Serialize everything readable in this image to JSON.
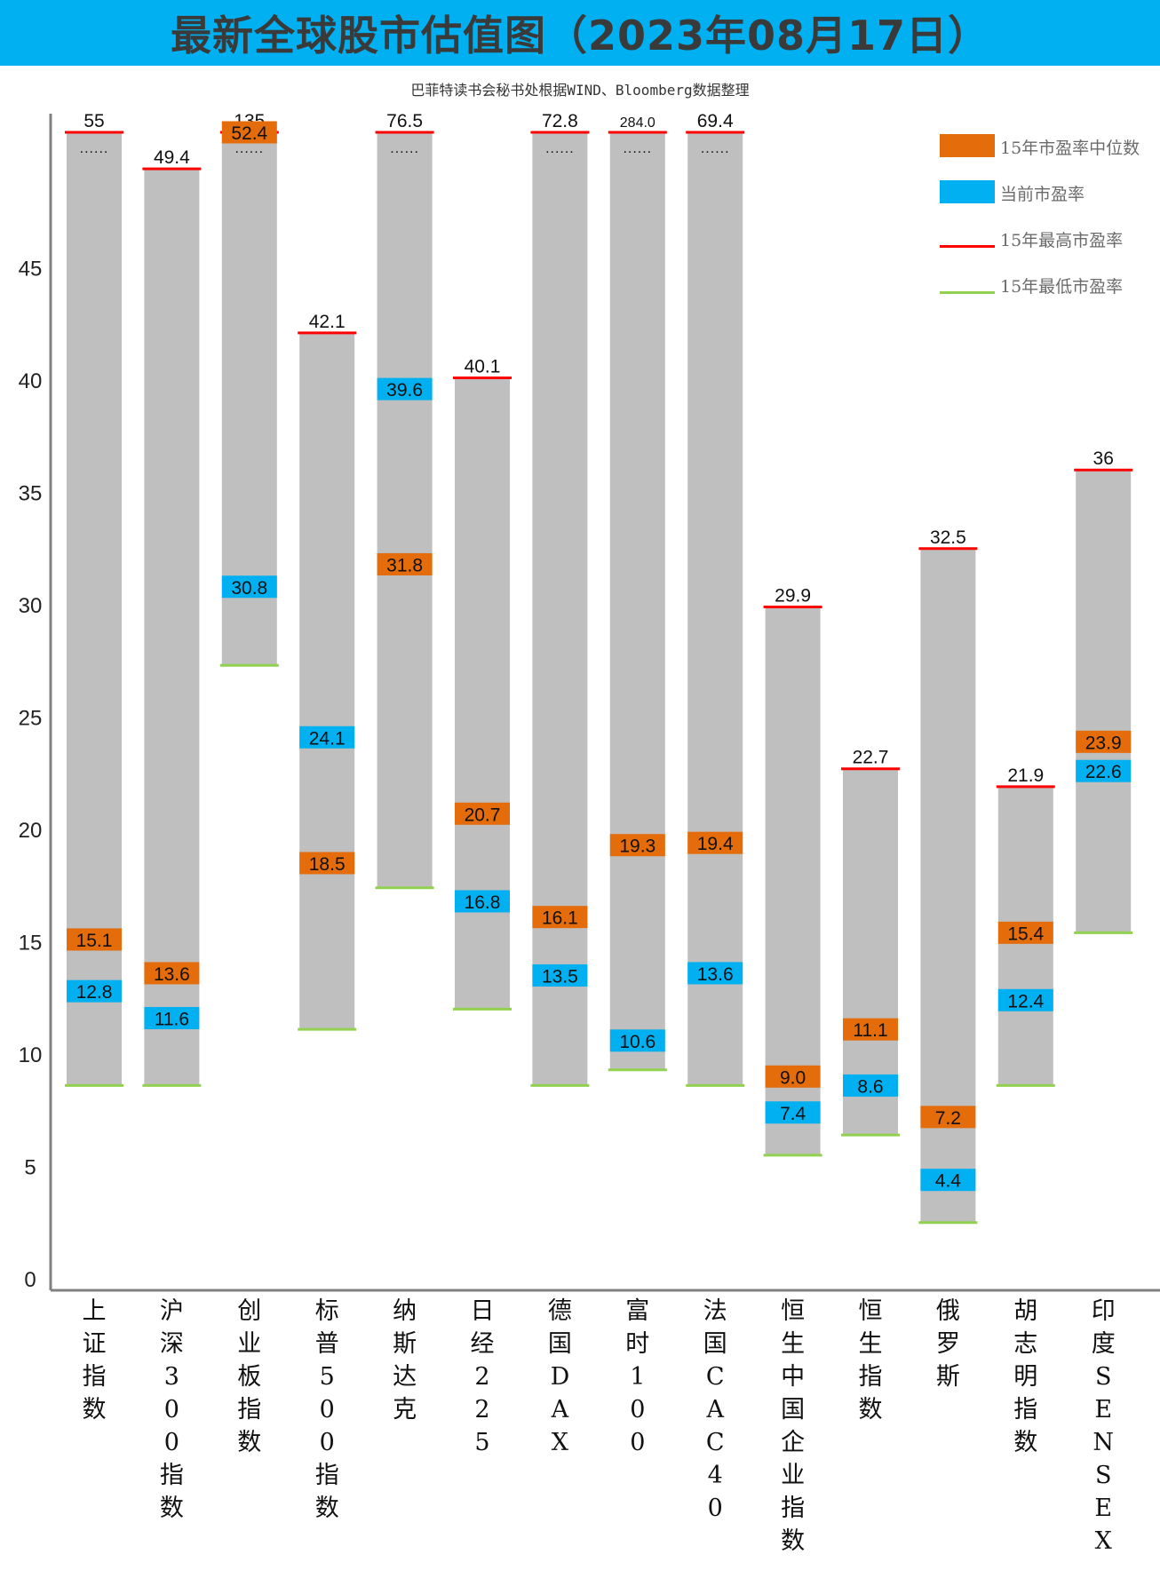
{
  "title": "最新全球股市估值图（2023年08月17日）",
  "subtitle": "巴菲特读书会秘书处根据WIND、Bloomberg数据整理",
  "legend": {
    "median": "15年市盈率中位数",
    "current": "当前市盈率",
    "high": "15年最高市盈率",
    "low": "15年最低市盈率"
  },
  "colors": {
    "bar": "#bfbfbf",
    "median": "#e46c0a",
    "current": "#00b0f0",
    "high": "#ff0000",
    "low": "#92d050",
    "title_bg": "#00b0f0"
  },
  "chart_data": {
    "type": "bar",
    "yticks": [
      "0",
      "5",
      "10",
      "15",
      "20",
      "25",
      "30",
      "35",
      "40",
      "45"
    ],
    "categories": [
      "上证指数",
      "沪深300指数",
      "创业板指数",
      "标普500指数",
      "纳斯达克",
      "日经225",
      "德国DAX",
      "富时100",
      "法国CAC40",
      "恒生中国企业指数",
      "恒生指数",
      "俄罗斯",
      "胡志明指数",
      "印度SENSEX"
    ],
    "series": [
      {
        "name": "15年最高市盈率",
        "values": [
          55,
          49.4,
          135,
          42.1,
          76.5,
          40.1,
          72.8,
          284.0,
          69.4,
          29.9,
          22.7,
          32.5,
          21.9,
          36
        ]
      },
      {
        "name": "15年市盈率中位数",
        "values": [
          15.1,
          13.6,
          52.4,
          18.5,
          31.8,
          20.7,
          16.1,
          19.3,
          19.4,
          9.0,
          11.1,
          7.2,
          15.4,
          23.9
        ]
      },
      {
        "name": "当前市盈率",
        "values": [
          12.8,
          11.6,
          30.8,
          24.1,
          39.6,
          16.8,
          13.5,
          10.6,
          13.6,
          7.4,
          8.6,
          4.4,
          12.4,
          22.6
        ]
      },
      {
        "name": "15年最低市盈率",
        "values": [
          8.6,
          8.6,
          27.3,
          11.1,
          17.4,
          12.0,
          8.6,
          9.3,
          8.6,
          5.5,
          6.4,
          2.5,
          8.6,
          15.4
        ]
      }
    ],
    "high_labels": [
      "55",
      "49.4",
      "135",
      "42.1",
      "76.5",
      "40.1",
      "72.8",
      "284.0",
      "69.4",
      "29.9",
      "22.7",
      "32.5",
      "21.9",
      "36"
    ],
    "median_labels": [
      "15.1",
      "13.6",
      "52.4",
      "18.5",
      "31.8",
      "20.7",
      "16.1",
      "19.3",
      "19.4",
      "9.0",
      "11.1",
      "7.2",
      "15.4",
      "23.9"
    ],
    "current_labels": [
      "12.8",
      "11.6",
      "30.8",
      "24.1",
      "39.6",
      "16.8",
      "13.5",
      "10.6",
      "13.6",
      "7.4",
      "8.6",
      "4.4",
      "12.4",
      "22.6"
    ],
    "break_marker": "......"
  }
}
